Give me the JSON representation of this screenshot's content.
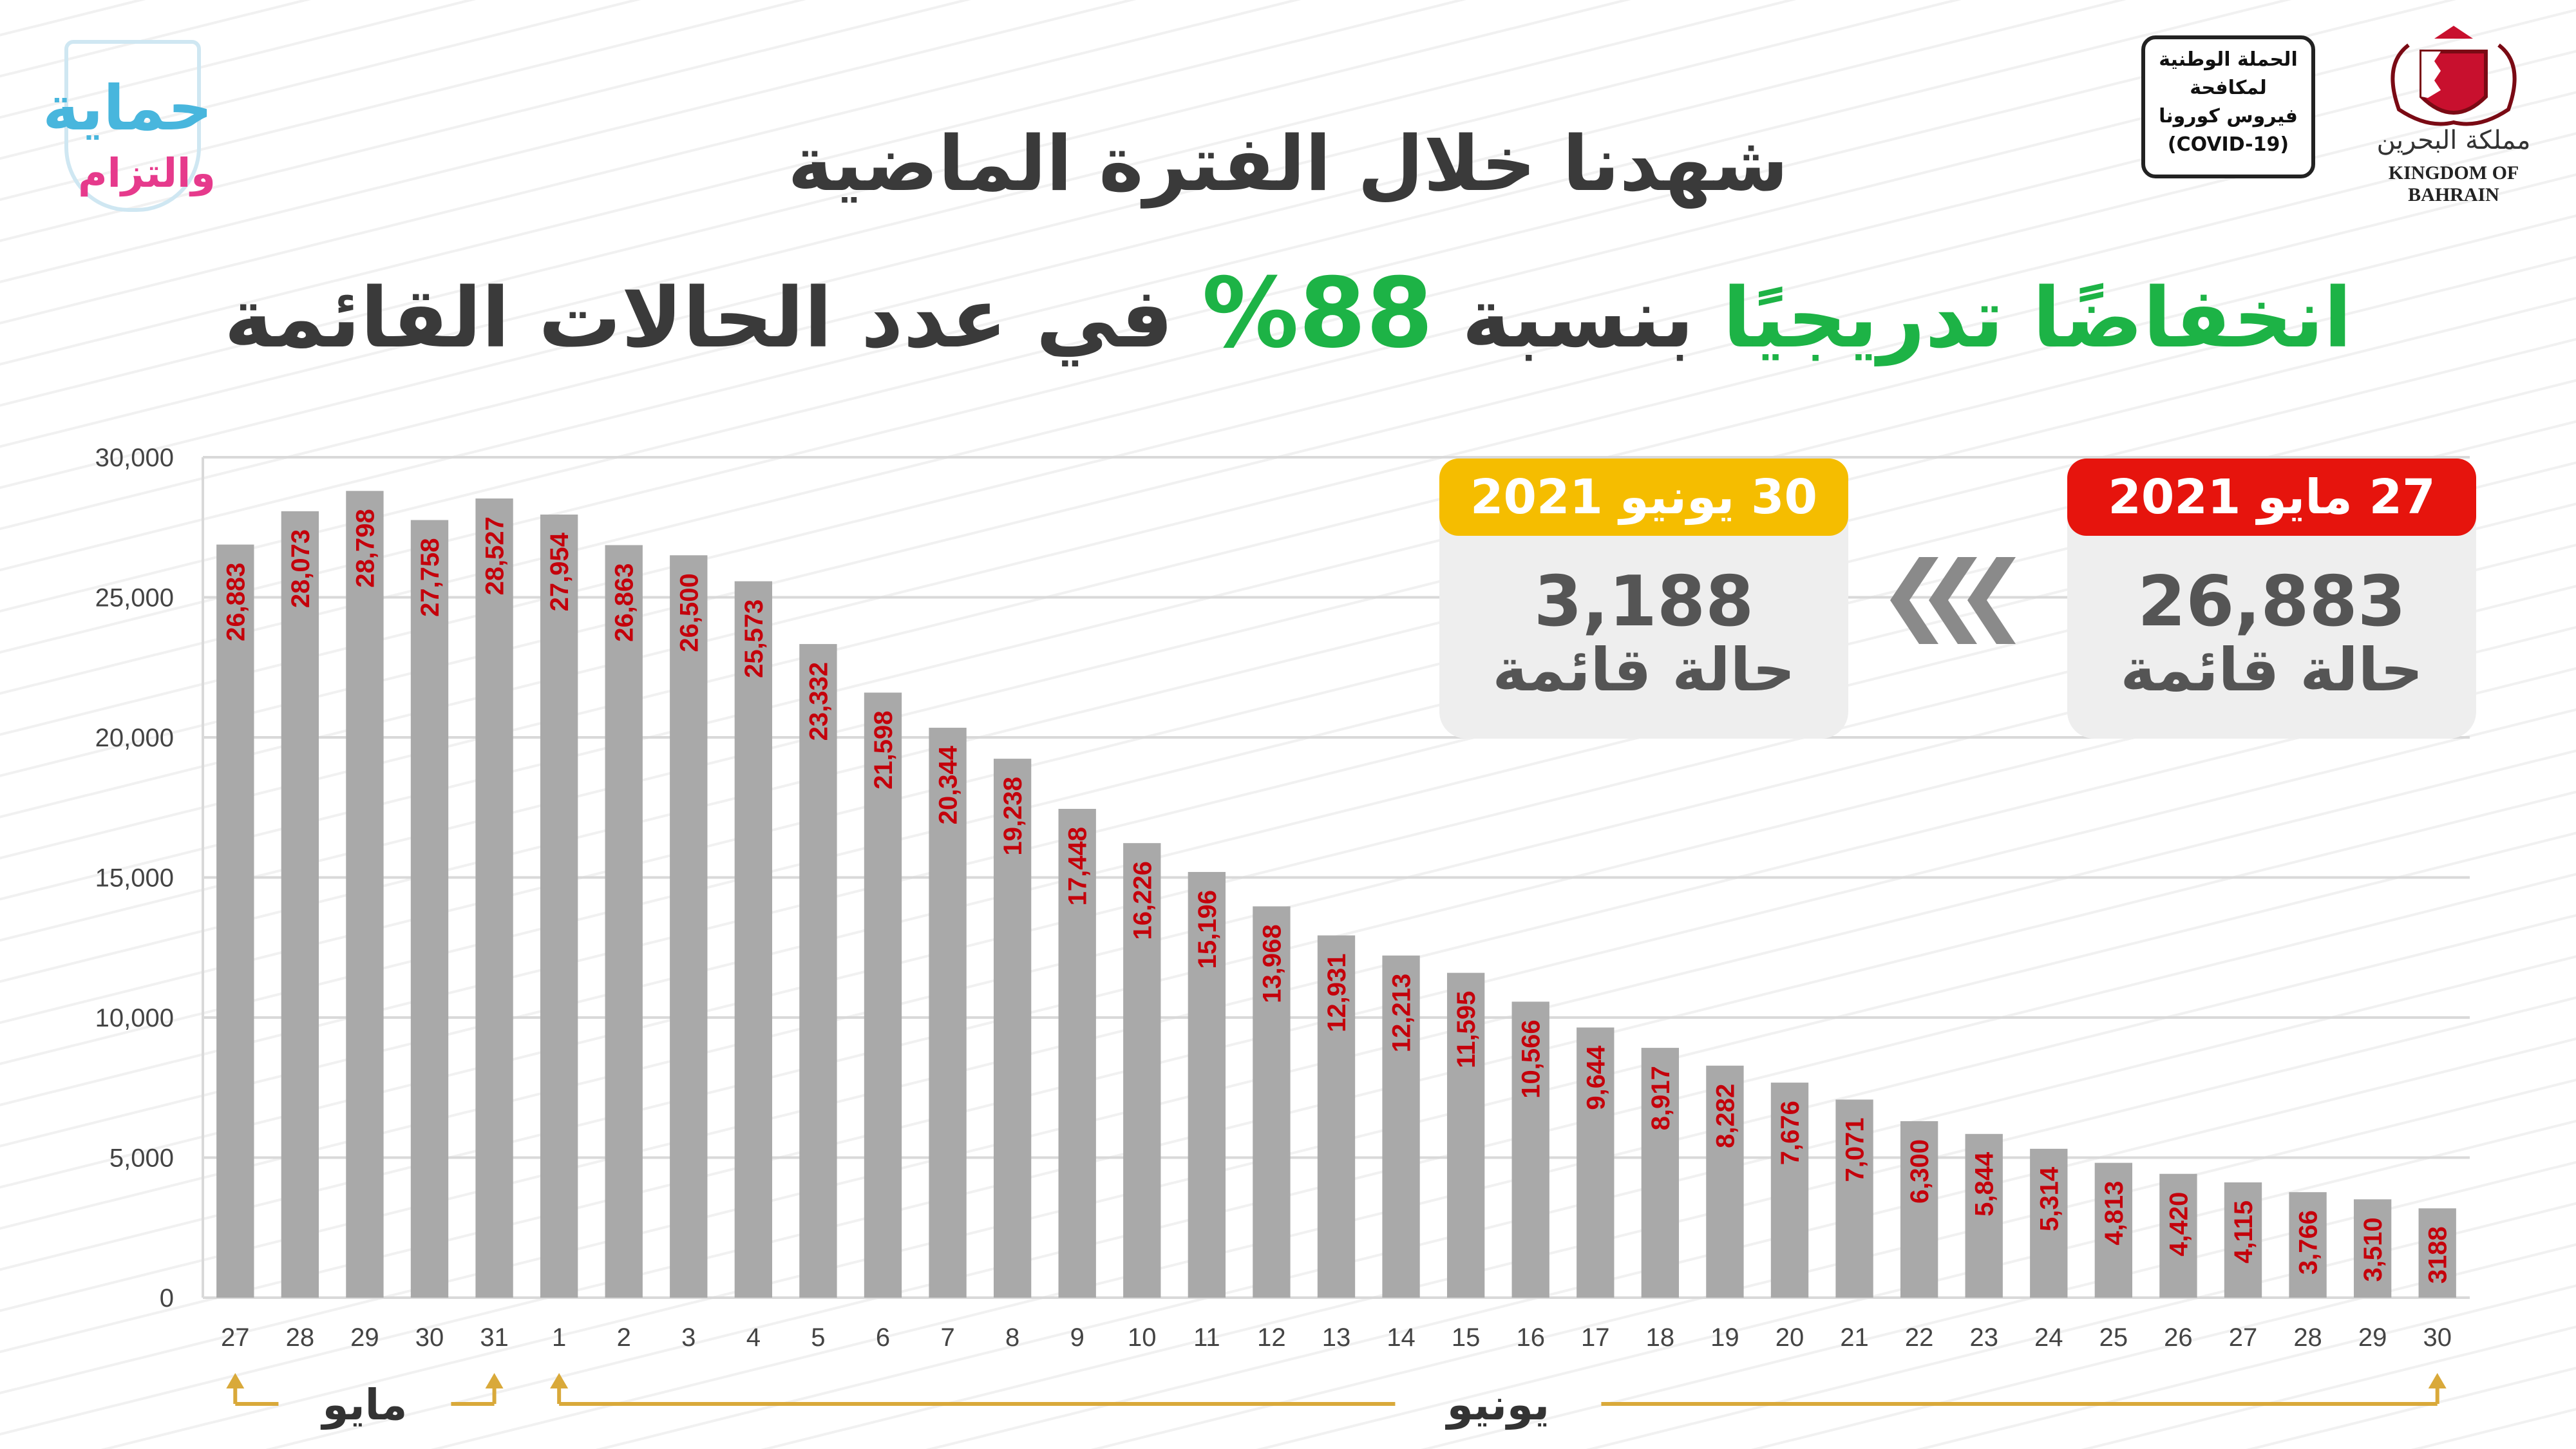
{
  "logo_left": {
    "line1": "حماية",
    "line2": "والتزام"
  },
  "campaign_badge": {
    "lines": [
      "الحملة الوطنية",
      "لمكافحة",
      "فيروس كورونا",
      "(COVID-19)"
    ]
  },
  "kingdom_logo": {
    "arabic": "مملكة البحرين",
    "english": "KINGDOM OF BAHRAIN"
  },
  "headline": {
    "line1": "شهدنا خلال الفترة الماضية",
    "line2_part1": "انخفاضًا تدريجيًا",
    "line2_part2": "بنسبة",
    "line2_percent": "88%",
    "line2_part3": "في عدد الحالات القائمة"
  },
  "cards": {
    "end": {
      "date": "30 يونيو 2021",
      "value": "3,188",
      "label": "حالة قائمة",
      "color": "#f5bd00"
    },
    "start": {
      "date": "27 مايو 2021",
      "value": "26,883",
      "label": "حالة قائمة",
      "color": "#e6140d"
    },
    "arrow_icon": "triple-chevron-left-icon"
  },
  "months": {
    "may": "مايو",
    "june": "يونيو"
  },
  "colors": {
    "bar": "#a9a9a9",
    "bar_label": "#c4000b",
    "green": "#1db346",
    "month_arrow": "#d9a93a"
  },
  "chart_data": {
    "type": "bar",
    "categories": [
      "27",
      "28",
      "29",
      "30",
      "31",
      "1",
      "2",
      "3",
      "4",
      "5",
      "6",
      "7",
      "8",
      "9",
      "10",
      "11",
      "12",
      "13",
      "14",
      "15",
      "16",
      "17",
      "18",
      "19",
      "20",
      "21",
      "22",
      "23",
      "24",
      "25",
      "26",
      "27",
      "28",
      "29",
      "30"
    ],
    "values": [
      26883,
      28073,
      28798,
      27758,
      28527,
      27954,
      26863,
      26500,
      25573,
      23332,
      21598,
      20344,
      19238,
      17448,
      16226,
      15196,
      13968,
      12931,
      12213,
      11595,
      10566,
      9644,
      8917,
      8282,
      7676,
      7071,
      6300,
      5844,
      5314,
      4813,
      4420,
      4115,
      3766,
      3510,
      3188
    ],
    "value_labels": [
      "26,883",
      "28,073",
      "28,798",
      "27,758",
      "28,527",
      "27,954",
      "26,863",
      "26,500",
      "25,573",
      "23,332",
      "21,598",
      "20,344",
      "19,238",
      "17,448",
      "16,226",
      "15,196",
      "13,968",
      "12,931",
      "12,213",
      "11,595",
      "10,566",
      "9,644",
      "8,917",
      "8,282",
      "7,676",
      "7,071",
      "6,300",
      "5,844",
      "5,314",
      "4,813",
      "4,420",
      "4,115",
      "3,766",
      "3,510",
      "3188"
    ],
    "y_ticks": [
      "0",
      "5,000",
      "10,000",
      "15,000",
      "20,000",
      "25,000",
      "30,000"
    ],
    "ylim": [
      0,
      30000
    ],
    "grid": true,
    "month_groups": [
      {
        "label": "مايو",
        "from_index": 0,
        "to_index": 4
      },
      {
        "label": "يونيو",
        "from_index": 5,
        "to_index": 34
      }
    ]
  }
}
